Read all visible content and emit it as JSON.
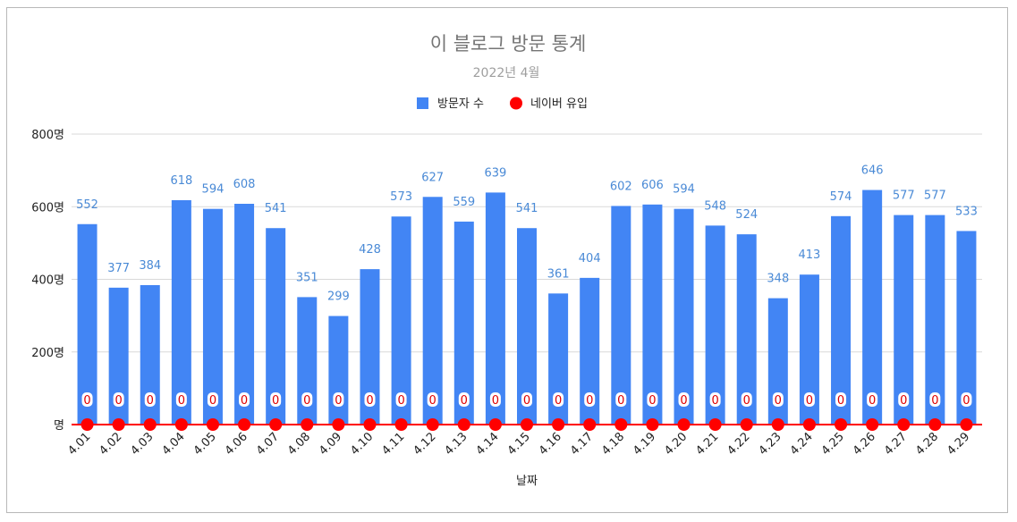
{
  "chart_data": {
    "type": "bar",
    "title": "이 블로그 방문 통계",
    "subtitle": "2022년 4월",
    "xlabel": "날짜",
    "ylabel": "",
    "ylim": [
      0,
      800
    ],
    "yticks": [
      0,
      200,
      400,
      600,
      800
    ],
    "ytick_labels": [
      "명",
      "200명",
      "400명",
      "600명",
      "800명"
    ],
    "categories": [
      "4.01",
      "4.02",
      "4.03",
      "4.04",
      "4.05",
      "4.06",
      "4.07",
      "4.08",
      "4.09",
      "4.10",
      "4.11",
      "4.12",
      "4.13",
      "4.14",
      "4.15",
      "4.16",
      "4.17",
      "4.18",
      "4.19",
      "4.20",
      "4.21",
      "4.22",
      "4.23",
      "4.24",
      "4.25",
      "4.26",
      "4.27",
      "4.28",
      "4.29"
    ],
    "series": [
      {
        "name": "방문자 수",
        "type": "bar",
        "color": "#4285f4",
        "values": [
          552,
          377,
          384,
          618,
          594,
          608,
          541,
          351,
          299,
          428,
          573,
          627,
          559,
          639,
          541,
          361,
          404,
          602,
          606,
          594,
          548,
          524,
          348,
          413,
          574,
          646,
          577,
          577,
          533
        ]
      },
      {
        "name": "네이버 유입",
        "type": "line",
        "color": "#ff0000",
        "values": [
          0,
          0,
          0,
          0,
          0,
          0,
          0,
          0,
          0,
          0,
          0,
          0,
          0,
          0,
          0,
          0,
          0,
          0,
          0,
          0,
          0,
          0,
          0,
          0,
          0,
          0,
          0,
          0,
          0
        ]
      }
    ],
    "legend_position": "top-center",
    "grid": true
  }
}
